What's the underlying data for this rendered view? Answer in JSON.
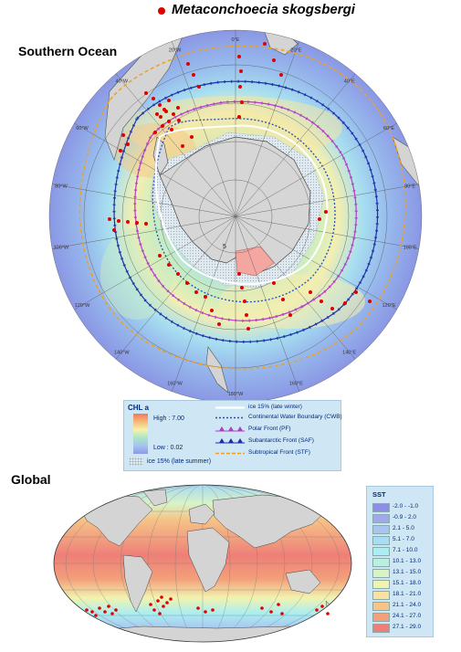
{
  "header": {
    "species": "Metaconchoecia  skogsbergi",
    "southern_title": "Southern Ocean",
    "global_title": "Global"
  },
  "polar_map": {
    "lon_labels": [
      "0°E",
      "20°E",
      "40°E",
      "60°E",
      "80°E",
      "100°E",
      "120°E",
      "140°E",
      "160°E",
      "180°W",
      "160°W",
      "140°W",
      "120°W",
      "100°W",
      "80°W",
      "60°W",
      "40°W",
      "20°W"
    ],
    "inset_label": "5",
    "colors": {
      "occurrence": "#e00000",
      "ice_winter": "#ffffff",
      "cwb": "#1f4fc4",
      "pf": "#b23cc8",
      "saf": "#1c2fa6",
      "stf": "#f0a020",
      "land": "#d4d4d4"
    }
  },
  "chl_legend": {
    "title": "CHL  a",
    "high": "High : 7.00",
    "low": "Low : 0.02",
    "ice_summer": "ice 15% (late summer)",
    "lines": [
      {
        "key": "ice",
        "label": "ice 15% (late winter)"
      },
      {
        "key": "cwb",
        "label": "Continental Water Boundary (CWB)"
      },
      {
        "key": "pf",
        "label": "Polar Front (PF)"
      },
      {
        "key": "saf",
        "label": "Subantarctic Front (SAF)"
      },
      {
        "key": "stf",
        "label": "Subtropical Front (STF)"
      }
    ]
  },
  "sst_legend": {
    "title": "SST",
    "classes": [
      {
        "label": "-2.0 - -1.0",
        "color": "#8e8ee8"
      },
      {
        "label": "-0.9 - 2.0",
        "color": "#9fa8ea"
      },
      {
        "label": "2.1 - 5.0",
        "color": "#a9c4ef"
      },
      {
        "label": "5.1 - 7.0",
        "color": "#a8def4"
      },
      {
        "label": "7.1 - 10.0",
        "color": "#a9eef2"
      },
      {
        "label": "10.1 - 13.0",
        "color": "#b8f1e0"
      },
      {
        "label": "13.1 - 15.0",
        "color": "#d8f4c6"
      },
      {
        "label": "15.1 - 18.0",
        "color": "#f2f3b0"
      },
      {
        "label": "18.1 - 21.0",
        "color": "#f7e2a2"
      },
      {
        "label": "21.1 - 24.0",
        "color": "#f6c487"
      },
      {
        "label": "24.1 - 27.0",
        "color": "#f3a07a"
      },
      {
        "label": "27.1 - 29.0",
        "color": "#ee7f78"
      }
    ]
  }
}
